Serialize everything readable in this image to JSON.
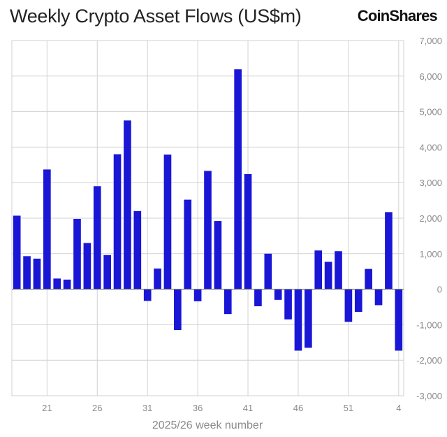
{
  "header": {
    "title": "Weekly Crypto Asset Flows (US$m)",
    "brand": "CoinShares"
  },
  "colors": {
    "bar": "#1a16d6",
    "grid": "#d2d2d2",
    "axis_text": "#8a8a8a"
  },
  "chart_data": {
    "type": "bar",
    "title": "Weekly Crypto Asset Flows (US$m)",
    "xlabel": "2025/26 week number",
    "ylabel": "",
    "ylim": [
      -3000,
      7000
    ],
    "y_ticks": [
      -3000,
      -2000,
      -1000,
      0,
      1000,
      2000,
      3000,
      4000,
      5000,
      6000,
      7000
    ],
    "y_tick_labels": [
      "-3,000",
      "-2,000",
      "-1,000",
      "0",
      "1,000",
      "2,000",
      "3,000",
      "4,000",
      "5,000",
      "6,000",
      "7,000"
    ],
    "y_axis_side": "right",
    "grid": true,
    "categories": [
      "18",
      "19",
      "20",
      "21",
      "22",
      "23",
      "24",
      "25",
      "26",
      "27",
      "28",
      "29",
      "30",
      "31",
      "32",
      "33",
      "34",
      "35",
      "36",
      "37",
      "38",
      "39",
      "40",
      "41",
      "42",
      "43",
      "44",
      "45",
      "46",
      "47",
      "48",
      "49",
      "50",
      "51",
      "52",
      "1",
      "2",
      "3",
      "4"
    ],
    "x_tick_labels": [
      "21",
      "26",
      "31",
      "36",
      "41",
      "46",
      "51",
      "4"
    ],
    "x_tick_categories": [
      "21",
      "26",
      "31",
      "36",
      "41",
      "46",
      "51",
      "4"
    ],
    "series": [
      {
        "values": [
          2070,
          930,
          860,
          3370,
          300,
          270,
          1980,
          1300,
          2900,
          960,
          3800,
          4750,
          2200,
          -330,
          580,
          3790,
          -1150,
          2520,
          -340,
          3330,
          1920,
          -700,
          6190,
          3240,
          -480,
          1000,
          -300,
          -850,
          -1730,
          -1650,
          1090,
          770,
          1070,
          -920,
          -640,
          570,
          -450,
          2170,
          -1730
        ]
      }
    ]
  }
}
